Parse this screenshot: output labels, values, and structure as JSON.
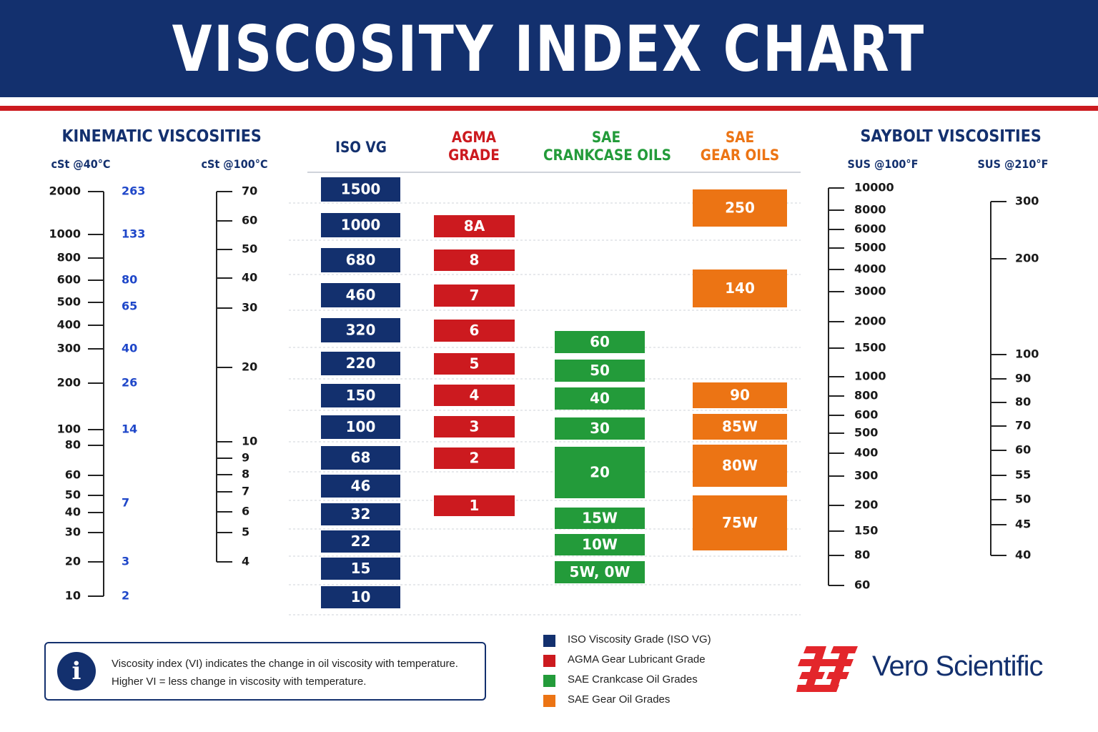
{
  "title": "VISCOSITY INDEX CHART",
  "colors": {
    "navy": "#13306e",
    "red": "#cc1a1f",
    "iso": "#13306e",
    "agma": "#cc1a1f",
    "sae_crankcase": "#239b3a",
    "sae_gear": "#ec7414",
    "blue_values": "#1f47c9"
  },
  "sections": {
    "kinematic": {
      "title": "KINEMATIC VISCOSITIES",
      "unit_40": "cSt @40°C",
      "unit_100": "cSt @100°C"
    },
    "saybolt": {
      "title": "SAYBOLT VISCOSITIES",
      "unit_100f": "SUS @100°F",
      "unit_210f": "SUS @210°F"
    }
  },
  "columns": {
    "iso": {
      "line1": "ISO VG",
      "line2": ""
    },
    "agma": {
      "line1": "AGMA",
      "line2": "GRADE"
    },
    "sae_crankcase": {
      "line1": "SAE",
      "line2": "CRANKCASE OILS"
    },
    "sae_gear": {
      "line1": "SAE",
      "line2": "GEAR OILS"
    }
  },
  "chart_data": {
    "type": "table",
    "title": "VISCOSITY INDEX CHART",
    "scales": {
      "cst_40c": {
        "label": "cSt @40°C",
        "ticks": [
          "2000",
          "1000",
          "800",
          "600",
          "500",
          "400",
          "300",
          "200",
          "100",
          "80",
          "60",
          "50",
          "40",
          "30",
          "20",
          "10"
        ]
      },
      "cst_40c_blue_values": [
        "263",
        "133",
        "80",
        "65",
        "40",
        "26",
        "14",
        "7",
        "3",
        "2"
      ],
      "cst_100c": {
        "label": "cSt @100°C",
        "ticks": [
          "70",
          "60",
          "50",
          "40",
          "30",
          "20",
          "10",
          "9",
          "8",
          "7",
          "6",
          "5",
          "4"
        ]
      },
      "sus_100f": {
        "label": "SUS @100°F",
        "ticks": [
          "10000",
          "8000",
          "6000",
          "5000",
          "4000",
          "3000",
          "2000",
          "1500",
          "1000",
          "800",
          "600",
          "500",
          "400",
          "300",
          "200",
          "150",
          "80",
          "60"
        ]
      },
      "sus_210f": {
        "label": "SUS @210°F",
        "ticks": [
          "300",
          "200",
          "100",
          "90",
          "80",
          "70",
          "60",
          "55",
          "50",
          "45",
          "40"
        ]
      }
    },
    "grades": {
      "iso_vg": [
        "1500",
        "1000",
        "680",
        "460",
        "320",
        "220",
        "150",
        "100",
        "68",
        "46",
        "32",
        "22",
        "15",
        "10"
      ],
      "agma": [
        "8A",
        "8",
        "7",
        "6",
        "5",
        "4",
        "3",
        "2",
        "1"
      ],
      "sae_crankcase": [
        "60",
        "50",
        "40",
        "30",
        "20",
        "15W",
        "10W",
        "5W, 0W"
      ],
      "sae_gear": [
        "250",
        "140",
        "90",
        "85W",
        "80W",
        "75W"
      ]
    }
  },
  "info": {
    "icon": "info-icon",
    "line1": "Viscosity index (VI) indicates the change in oil viscosity with temperature.",
    "line2": "Higher VI = less change in viscosity with temperature."
  },
  "legend": [
    {
      "label": "ISO Viscosity Grade (ISO VG)",
      "color": "#13306e"
    },
    {
      "label": "AGMA Gear Lubricant Grade",
      "color": "#cc1a1f"
    },
    {
      "label": "SAE Crankcase Oil Grades",
      "color": "#239b3a"
    },
    {
      "label": "SAE Gear Oil Grades",
      "color": "#ec7414"
    }
  ],
  "brand": {
    "name": "Vero Scientific",
    "icon": "vero-scientific-logo-icon"
  }
}
